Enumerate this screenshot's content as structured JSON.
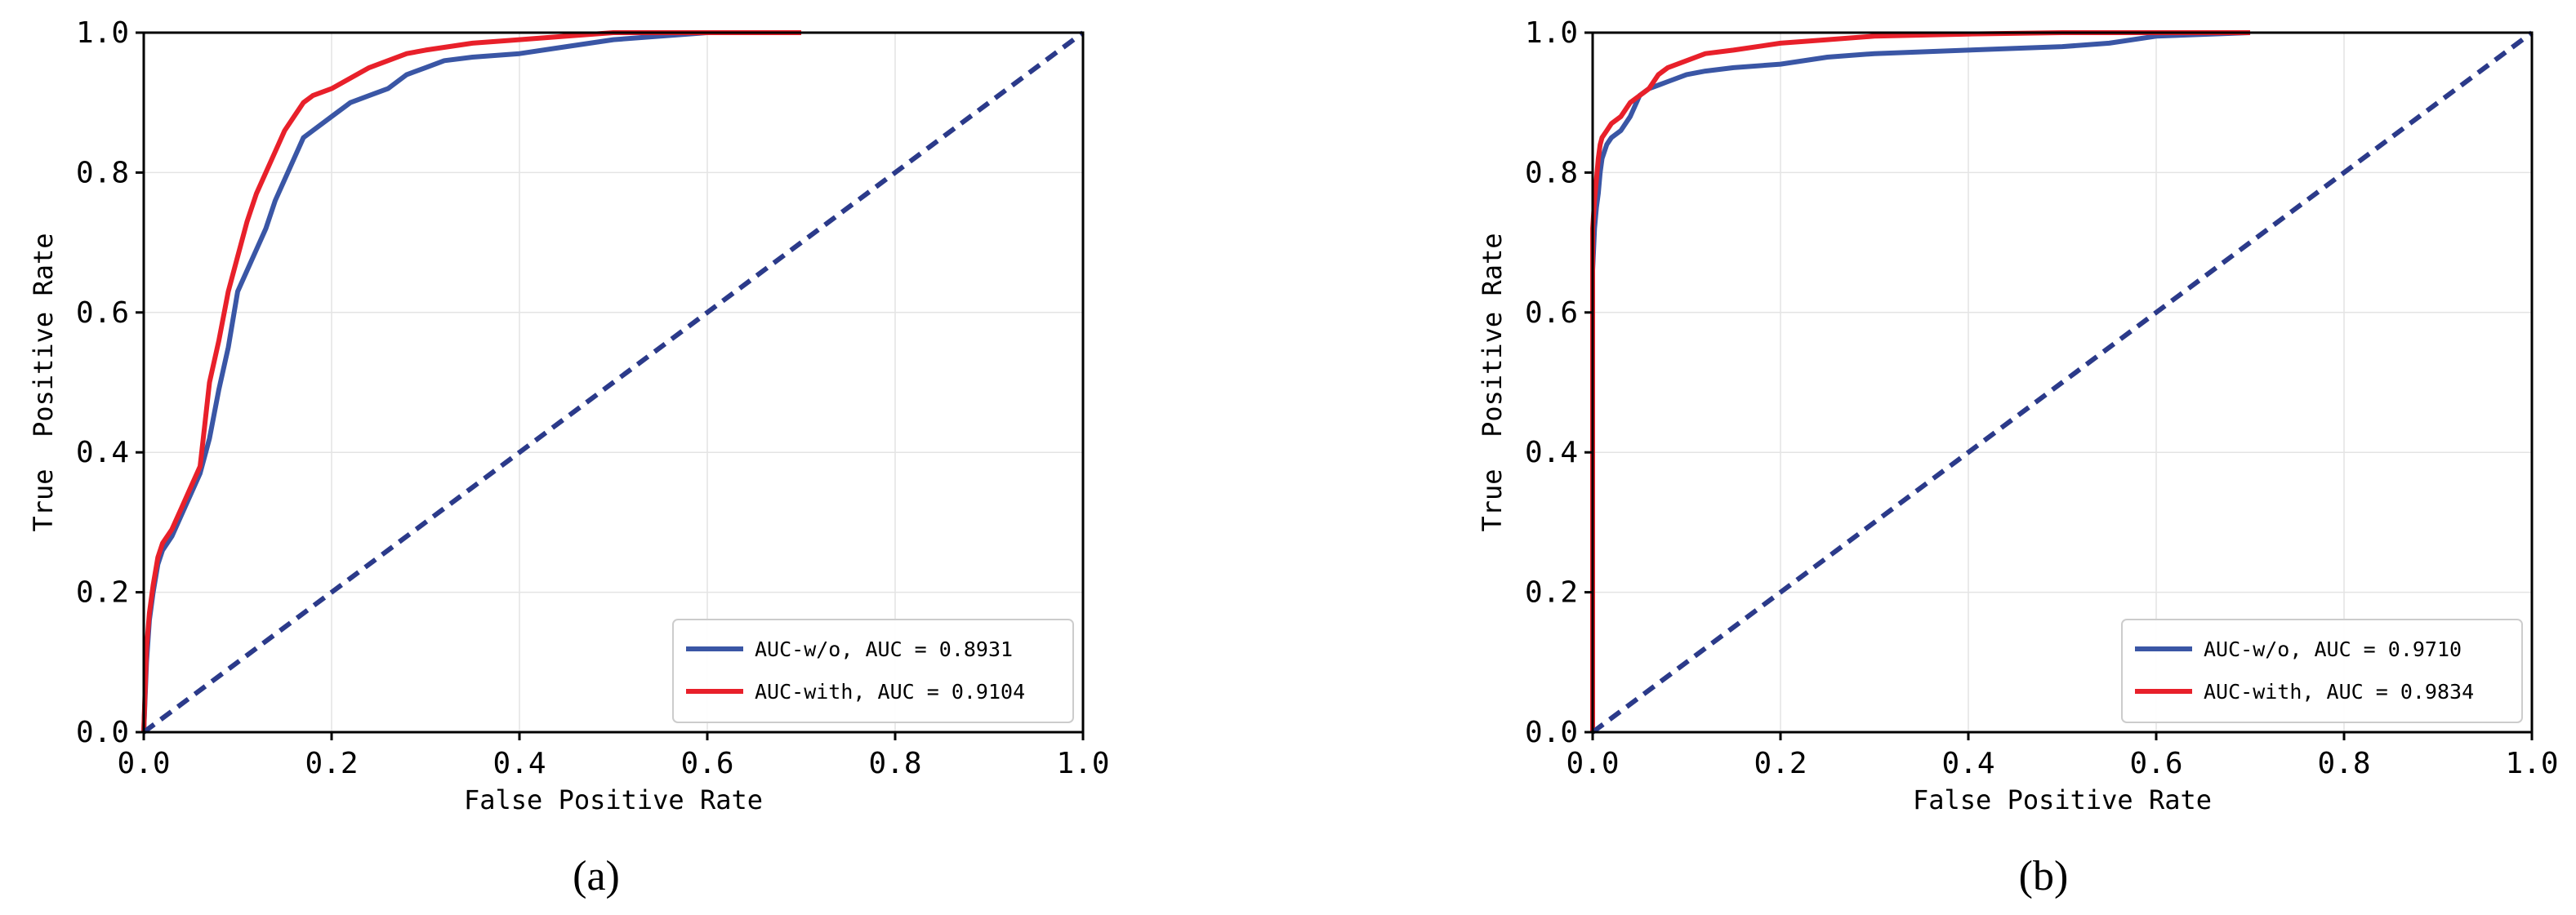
{
  "chart_data": [
    {
      "type": "line",
      "caption": "(a)",
      "xlabel": "False Positive Rate",
      "ylabel": "True  Positive Rate",
      "xlim": [
        0,
        1
      ],
      "ylim": [
        0,
        1
      ],
      "xticks": [
        "0.0",
        "0.2",
        "0.4",
        "0.6",
        "0.8",
        "1.0"
      ],
      "yticks": [
        "0.0",
        "0.2",
        "0.4",
        "0.6",
        "0.8",
        "1.0"
      ],
      "grid": true,
      "legend_position": "bottom-right",
      "series": [
        {
          "name": "AUC-w/o, AUC = 0.8931",
          "color": "#3a56a5",
          "x": [
            0,
            0.003,
            0.006,
            0.01,
            0.015,
            0.02,
            0.03,
            0.04,
            0.05,
            0.06,
            0.07,
            0.08,
            0.09,
            0.1,
            0.11,
            0.12,
            0.13,
            0.14,
            0.15,
            0.16,
            0.17,
            0.18,
            0.2,
            0.22,
            0.24,
            0.26,
            0.28,
            0.3,
            0.32,
            0.35,
            0.4,
            0.45,
            0.5,
            0.55,
            0.6,
            0.7
          ],
          "y": [
            0,
            0.1,
            0.16,
            0.2,
            0.24,
            0.26,
            0.28,
            0.31,
            0.34,
            0.37,
            0.42,
            0.49,
            0.55,
            0.63,
            0.66,
            0.69,
            0.72,
            0.76,
            0.79,
            0.82,
            0.85,
            0.86,
            0.88,
            0.9,
            0.91,
            0.92,
            0.94,
            0.95,
            0.96,
            0.965,
            0.97,
            0.98,
            0.99,
            0.995,
            1.0,
            1.0
          ]
        },
        {
          "name": "AUC-with, AUC = 0.9104",
          "color": "#e8202a",
          "x": [
            0,
            0.003,
            0.006,
            0.01,
            0.015,
            0.02,
            0.03,
            0.04,
            0.05,
            0.06,
            0.065,
            0.07,
            0.08,
            0.09,
            0.1,
            0.11,
            0.12,
            0.13,
            0.14,
            0.15,
            0.16,
            0.17,
            0.18,
            0.2,
            0.22,
            0.24,
            0.26,
            0.28,
            0.3,
            0.35,
            0.4,
            0.45,
            0.5,
            0.6,
            0.7
          ],
          "y": [
            0,
            0.12,
            0.17,
            0.21,
            0.25,
            0.27,
            0.29,
            0.32,
            0.35,
            0.38,
            0.44,
            0.5,
            0.56,
            0.63,
            0.68,
            0.73,
            0.77,
            0.8,
            0.83,
            0.86,
            0.88,
            0.9,
            0.91,
            0.92,
            0.935,
            0.95,
            0.96,
            0.97,
            0.975,
            0.985,
            0.99,
            0.995,
            1.0,
            1.0,
            1.0
          ]
        },
        {
          "color": "#2b3a8a",
          "dashed": true,
          "x": [
            0,
            1
          ],
          "y": [
            0,
            1
          ]
        }
      ]
    },
    {
      "type": "line",
      "caption": "(b)",
      "xlabel": "False Positive Rate",
      "ylabel": "True  Positive Rate",
      "xlim": [
        0,
        1
      ],
      "ylim": [
        0,
        1
      ],
      "xticks": [
        "0.0",
        "0.2",
        "0.4",
        "0.6",
        "0.8",
        "1.0"
      ],
      "yticks": [
        "0.0",
        "0.2",
        "0.4",
        "0.6",
        "0.8",
        "1.0"
      ],
      "grid": true,
      "legend_position": "bottom-right",
      "series": [
        {
          "name": "AUC-w/o, AUC = 0.9710",
          "color": "#3a56a5",
          "x": [
            0,
            0.0,
            0.002,
            0.004,
            0.006,
            0.008,
            0.01,
            0.015,
            0.02,
            0.03,
            0.04,
            0.05,
            0.06,
            0.08,
            0.1,
            0.12,
            0.15,
            0.2,
            0.25,
            0.3,
            0.4,
            0.5,
            0.55,
            0.6,
            0.7
          ],
          "y": [
            0,
            0.66,
            0.72,
            0.75,
            0.77,
            0.8,
            0.82,
            0.84,
            0.85,
            0.86,
            0.88,
            0.91,
            0.92,
            0.93,
            0.94,
            0.945,
            0.95,
            0.955,
            0.965,
            0.97,
            0.975,
            0.98,
            0.985,
            0.995,
            1.0
          ]
        },
        {
          "name": "AUC-with, AUC = 0.9834",
          "color": "#e8202a",
          "x": [
            0,
            0.0,
            0.002,
            0.004,
            0.006,
            0.008,
            0.01,
            0.015,
            0.02,
            0.03,
            0.04,
            0.05,
            0.06,
            0.07,
            0.08,
            0.1,
            0.12,
            0.15,
            0.2,
            0.25,
            0.3,
            0.4,
            0.5,
            0.6,
            0.7
          ],
          "y": [
            0,
            0.72,
            0.76,
            0.79,
            0.82,
            0.84,
            0.85,
            0.86,
            0.87,
            0.88,
            0.9,
            0.91,
            0.92,
            0.94,
            0.95,
            0.96,
            0.97,
            0.975,
            0.985,
            0.99,
            0.995,
            0.998,
            1.0,
            1.0,
            1.0
          ]
        },
        {
          "color": "#2b3a8a",
          "dashed": true,
          "x": [
            0,
            1
          ],
          "y": [
            0,
            1
          ]
        }
      ]
    }
  ]
}
